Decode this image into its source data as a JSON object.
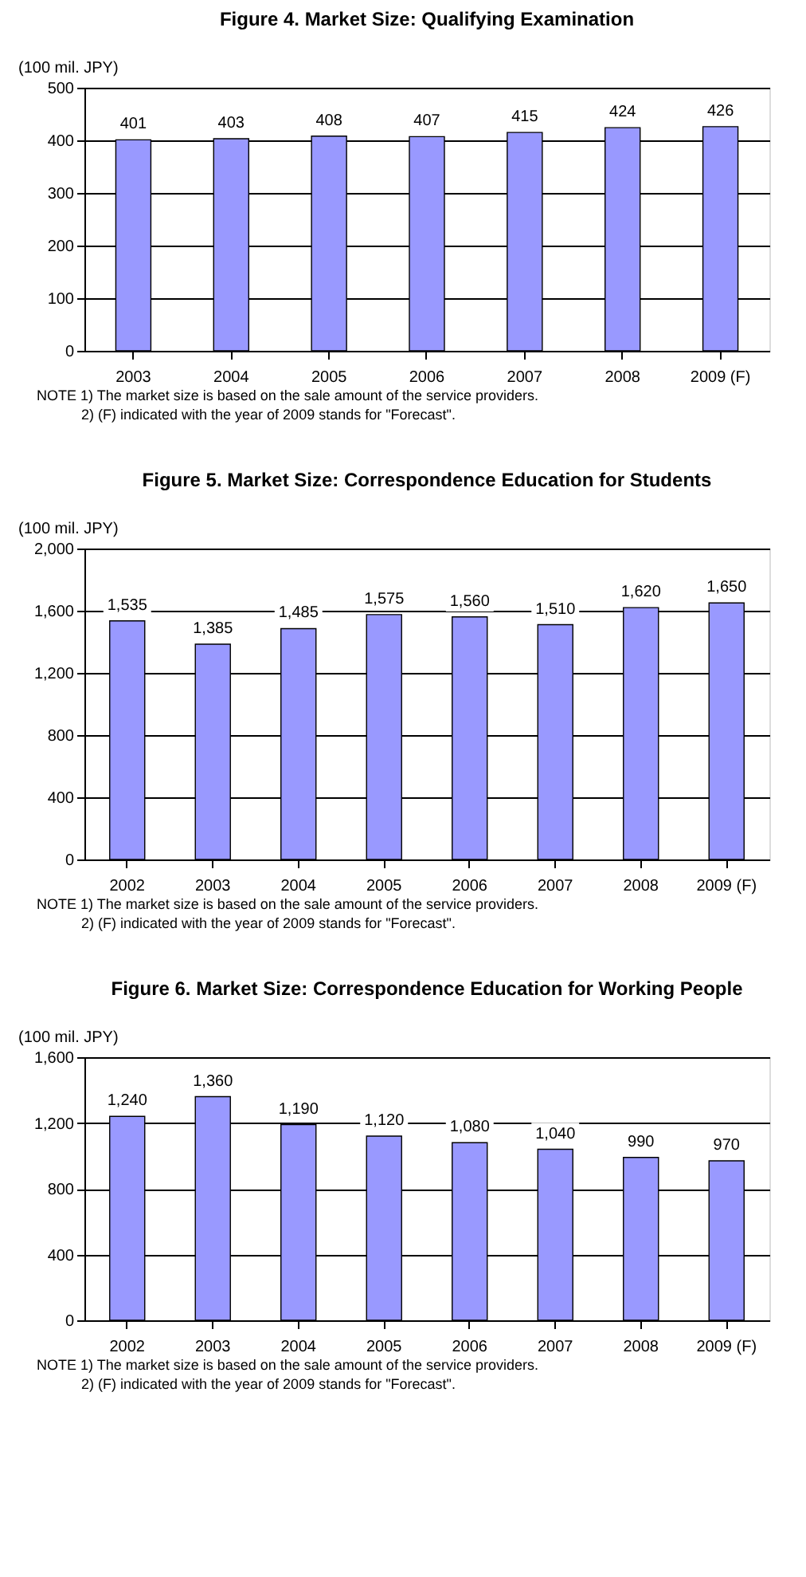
{
  "chart_data": [
    {
      "type": "bar",
      "title": "Figure 4. Market Size: Qualifying Examination",
      "ylabel": "(100 mil. JPY)",
      "categories": [
        "2003",
        "2004",
        "2005",
        "2006",
        "2007",
        "2008",
        "2009 (F)"
      ],
      "series": [
        {
          "color": "#9999ff",
          "values": [
            401,
            403,
            408,
            407,
            415,
            424,
            426
          ]
        }
      ],
      "ylim": [
        0,
        500
      ],
      "yticks": [
        0,
        100,
        200,
        300,
        400,
        500
      ],
      "grid": "y",
      "data_labels": true,
      "annotations": [
        "NOTE 1) The market size is based on the sale amount of the service providers.",
        "2) (F) indicated with the year of 2009 stands for \"Forecast\"."
      ]
    },
    {
      "type": "bar",
      "title": "Figure 5. Market Size: Correspondence Education for Students",
      "ylabel": "(100 mil. JPY)",
      "categories": [
        "2002",
        "2003",
        "2004",
        "2005",
        "2006",
        "2007",
        "2008",
        "2009 (F)"
      ],
      "series": [
        {
          "color": "#9999ff",
          "values": [
            1535,
            1385,
            1485,
            1575,
            1560,
            1510,
            1620,
            1650
          ],
          "value_labels": [
            "1,535",
            "1,385",
            "1,485",
            "1,575",
            "1,560",
            "1,510",
            "1,620",
            "1,650"
          ]
        }
      ],
      "ylim": [
        0,
        2000
      ],
      "yticks": [
        0,
        400,
        800,
        {
          "value": 1200,
          "label": "1,200"
        },
        {
          "value": 1600,
          "label": "1,600"
        },
        {
          "value": 2000,
          "label": "2,000"
        }
      ],
      "grid": "y",
      "annotations": [
        "NOTE 1) The market size is based on the sale amount of the service providers.",
        "2) (F) indicated with the year of 2009 stands for \"Forecast\"."
      ]
    },
    {
      "type": "bar",
      "title": "Figure 6. Market Size: Correspondence Education for Working People",
      "ylabel": "(100 mil. JPY)",
      "categories": [
        "2002",
        "2003",
        "2004",
        "2005",
        "2006",
        "2007",
        "2008",
        "2009 (F)"
      ],
      "series": [
        {
          "color": "#9999ff",
          "values": [
            1240,
            1360,
            1190,
            1120,
            1080,
            1040,
            990,
            970
          ],
          "value_labels": [
            "1,240",
            "1,360",
            "1,190",
            "1,120",
            "1,080",
            "1,040",
            "990",
            "970"
          ]
        }
      ],
      "ylim": [
        0,
        1600
      ],
      "yticks": [
        0,
        400,
        800,
        {
          "value": 1200,
          "label": "1,200"
        },
        {
          "value": 1600,
          "label": "1,600"
        }
      ],
      "grid": "y",
      "annotations": [
        "NOTE 1) The market size is based on the sale amount of the service providers.",
        "2) (F) indicated with the year of 2009 stands for \"Forecast\"."
      ]
    }
  ]
}
